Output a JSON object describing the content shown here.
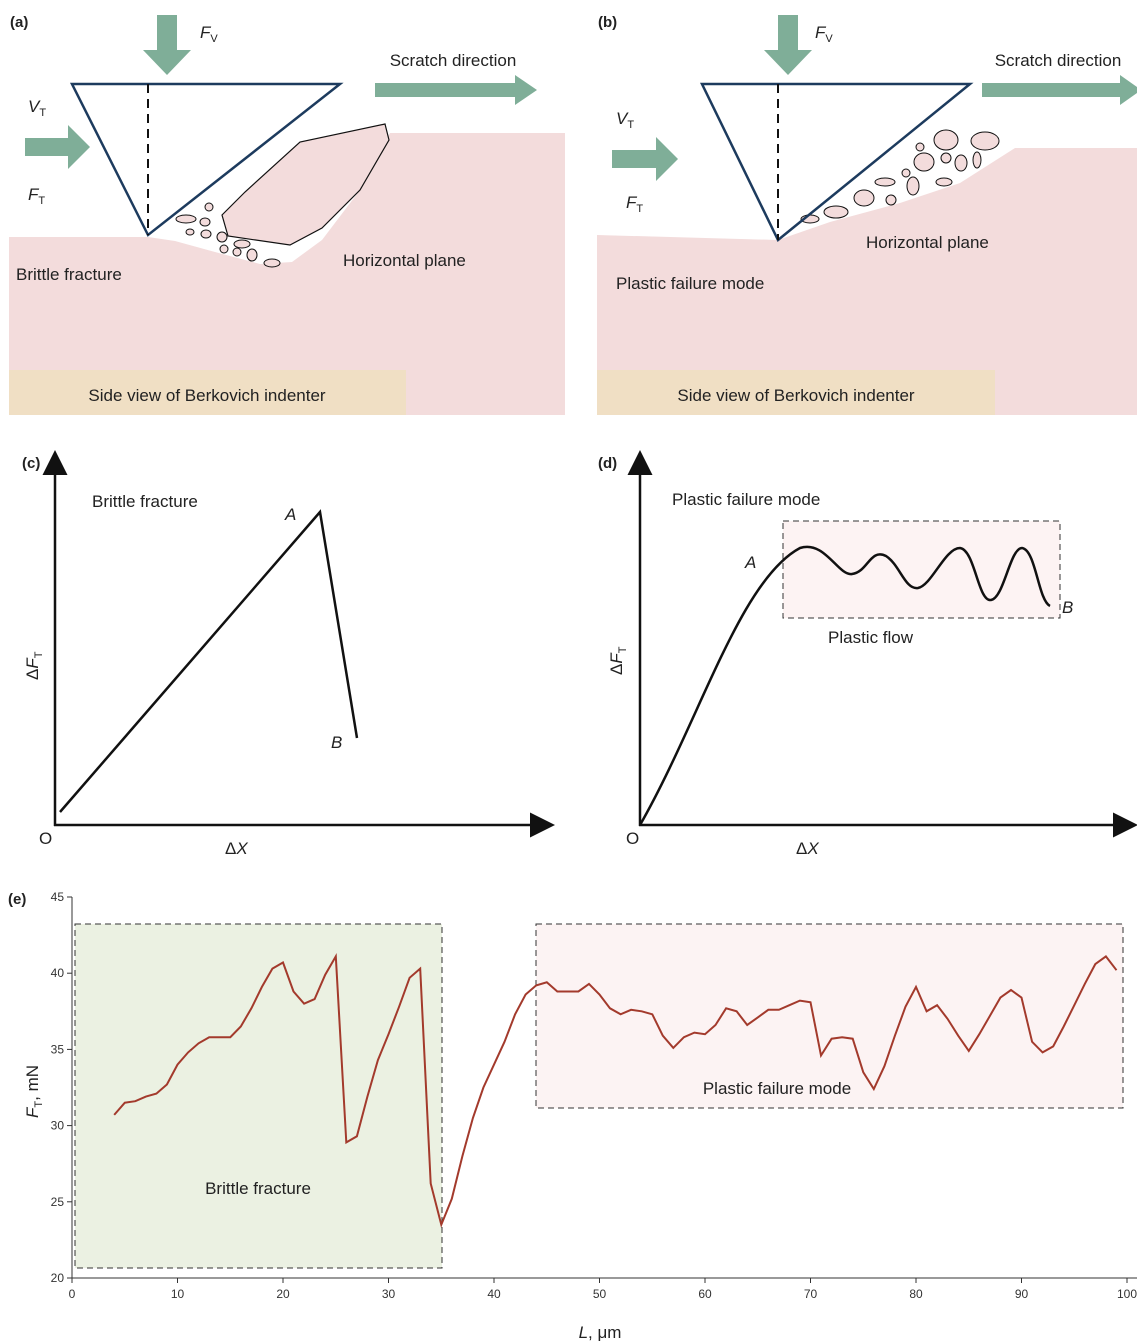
{
  "panel_a": {
    "label": "(a)",
    "force_v": {
      "symbol": "F",
      "sub": "V"
    },
    "velocity": {
      "symbol": "V",
      "sub": "T"
    },
    "force_t": {
      "symbol": "F",
      "sub": "T"
    },
    "direction": "Scratch direction",
    "mode": "Brittle fracture",
    "plane": "Horizontal plane",
    "caption": "Side view of Berkovich indenter"
  },
  "panel_b": {
    "label": "(b)",
    "force_v": {
      "symbol": "F",
      "sub": "V"
    },
    "velocity": {
      "symbol": "V",
      "sub": "T"
    },
    "force_t": {
      "symbol": "F",
      "sub": "T"
    },
    "direction": "Scratch direction",
    "mode": "Plastic failure mode",
    "plane": "Horizontal plane",
    "caption": "Side view of Berkovich indenter"
  },
  "panel_c": {
    "label": "(c)",
    "title": "Brittle fracture",
    "point_a": "A",
    "point_b": "B",
    "origin": "O",
    "x_axis": {
      "prefix": "Δ",
      "symbol": "X"
    },
    "y_axis": {
      "prefix": "Δ",
      "symbol": "F",
      "sub": "T"
    }
  },
  "panel_d": {
    "label": "(d)",
    "title": "Plastic failure mode",
    "region": "Plastic flow",
    "point_a": "A",
    "point_b": "B",
    "origin": "O",
    "x_axis": {
      "prefix": "Δ",
      "symbol": "X"
    },
    "y_axis": {
      "prefix": "Δ",
      "symbol": "F",
      "sub": "T"
    }
  },
  "chart_data": {
    "type": "line",
    "label": "(e)",
    "color": "#a33a2c",
    "x": [
      4,
      5,
      6,
      7,
      8,
      9,
      10,
      11,
      12,
      13,
      14,
      15,
      16,
      17,
      18,
      19,
      20,
      21,
      22,
      23,
      24,
      25,
      26,
      27,
      28,
      29,
      30,
      31,
      32,
      33,
      34,
      35,
      36,
      37,
      38,
      39,
      40,
      41,
      42,
      43,
      44,
      45,
      46,
      47,
      48,
      49,
      50,
      51,
      52,
      53,
      54,
      55,
      56,
      57,
      58,
      59,
      60,
      61,
      62,
      63,
      64,
      65,
      66,
      67,
      68,
      69,
      70,
      71,
      72,
      73,
      74,
      75,
      76,
      77,
      78,
      79,
      80,
      81,
      82,
      83,
      84,
      85,
      86,
      87,
      88,
      89,
      90,
      91,
      92,
      93,
      94,
      95,
      96,
      97,
      98,
      99
    ],
    "values": [
      30.7,
      31.5,
      31.6,
      31.9,
      32.1,
      32.7,
      34.0,
      34.8,
      35.4,
      35.8,
      35.8,
      35.8,
      36.5,
      37.7,
      39.1,
      40.3,
      40.7,
      38.8,
      38.0,
      38.3,
      39.9,
      41.1,
      28.9,
      29.3,
      31.9,
      34.3,
      36.0,
      37.8,
      39.7,
      40.3,
      26.2,
      23.5,
      25.2,
      28.0,
      30.5,
      32.5,
      34.0,
      35.5,
      37.3,
      38.6,
      39.2,
      39.4,
      38.8,
      38.8,
      38.8,
      39.3,
      38.6,
      37.7,
      37.3,
      37.6,
      37.5,
      37.3,
      35.9,
      35.1,
      35.8,
      36.1,
      36.0,
      36.6,
      37.7,
      37.5,
      36.6,
      37.1,
      37.6,
      37.6,
      37.9,
      38.2,
      38.1,
      34.6,
      35.7,
      35.8,
      35.7,
      33.5,
      32.4,
      33.9,
      35.9,
      37.8,
      39.1,
      37.5,
      37.9,
      37.0,
      35.9,
      34.9,
      36.0,
      37.2,
      38.4,
      38.9,
      38.4,
      35.5,
      34.8,
      35.2,
      36.5,
      37.9,
      39.3,
      40.6,
      41.1,
      40.2
    ],
    "xlim": [
      0,
      100
    ],
    "ylim": [
      20,
      45
    ],
    "xticks": [
      0,
      10,
      20,
      30,
      40,
      50,
      60,
      70,
      80,
      90,
      100
    ],
    "yticks": [
      20,
      25,
      30,
      35,
      40,
      45
    ],
    "x_label": {
      "symbol": "L",
      "unit": ", μm"
    },
    "y_label": {
      "symbol": "F",
      "sub": "T",
      "unit": ", mN"
    },
    "annotations": [
      "Brittle fracture",
      "Plastic failure mode"
    ]
  }
}
